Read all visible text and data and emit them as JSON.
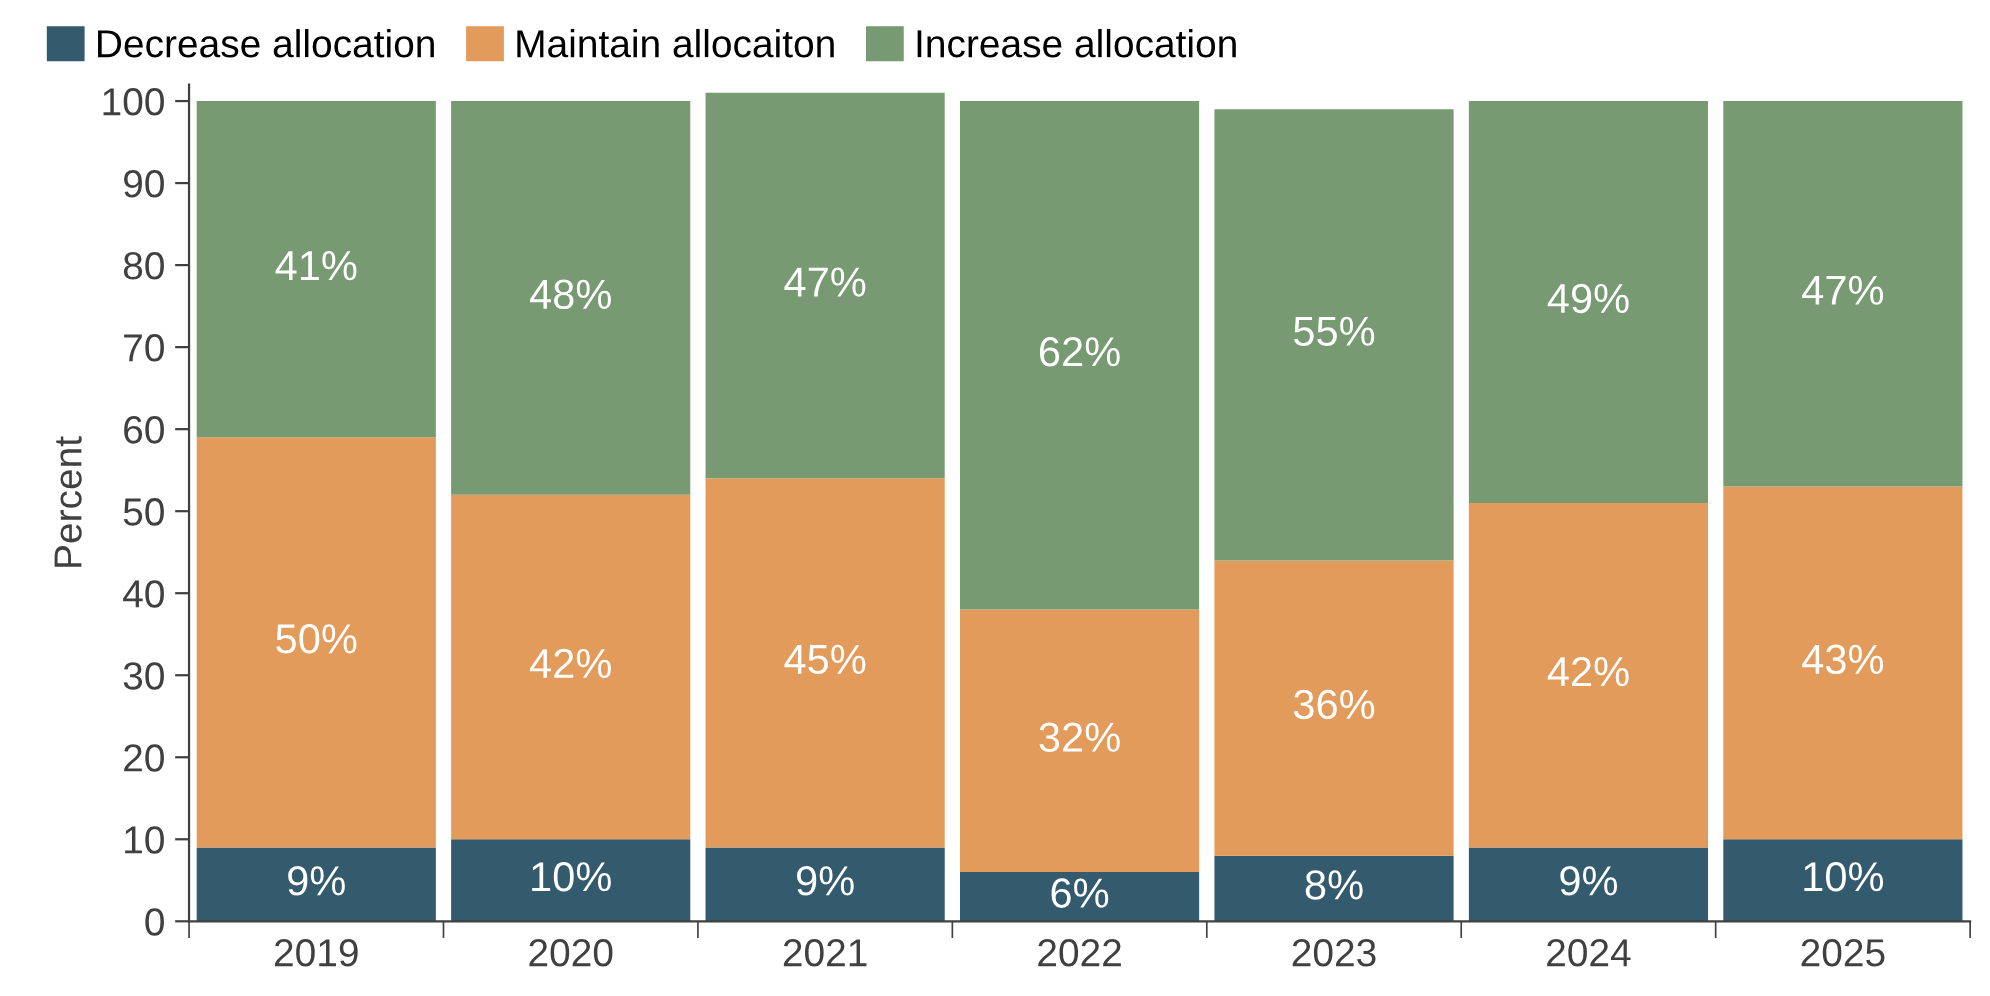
{
  "chart_data": {
    "type": "bar",
    "stacked": true,
    "ylabel": "Percent",
    "categories": [
      "2019",
      "2020",
      "2021",
      "2022",
      "2023",
      "2024",
      "2025"
    ],
    "series": [
      {
        "name": "Decrease allocation",
        "color": "#345a6e",
        "values": [
          9,
          10,
          9,
          6,
          8,
          9,
          10
        ],
        "value_labels": [
          "9%",
          "10%",
          "9%",
          "6%",
          "8%",
          "9%",
          "10%"
        ]
      },
      {
        "name": "Maintain allocaiton",
        "color": "#e39b5b",
        "values": [
          50,
          42,
          45,
          32,
          36,
          42,
          43
        ],
        "value_labels": [
          "50%",
          "42%",
          "45%",
          "32%",
          "36%",
          "42%",
          "43%"
        ]
      },
      {
        "name": "Increase allocation",
        "color": "#779a72",
        "values": [
          41,
          48,
          47,
          62,
          55,
          49,
          47
        ],
        "value_labels": [
          "41%",
          "48%",
          "47%",
          "62%",
          "55%",
          "49%",
          "47%"
        ]
      }
    ],
    "ylim": [
      0,
      102
    ],
    "yticks": [
      0,
      10,
      20,
      30,
      40,
      50,
      60,
      70,
      80,
      90,
      100
    ],
    "grid": false,
    "legend": "top left"
  }
}
